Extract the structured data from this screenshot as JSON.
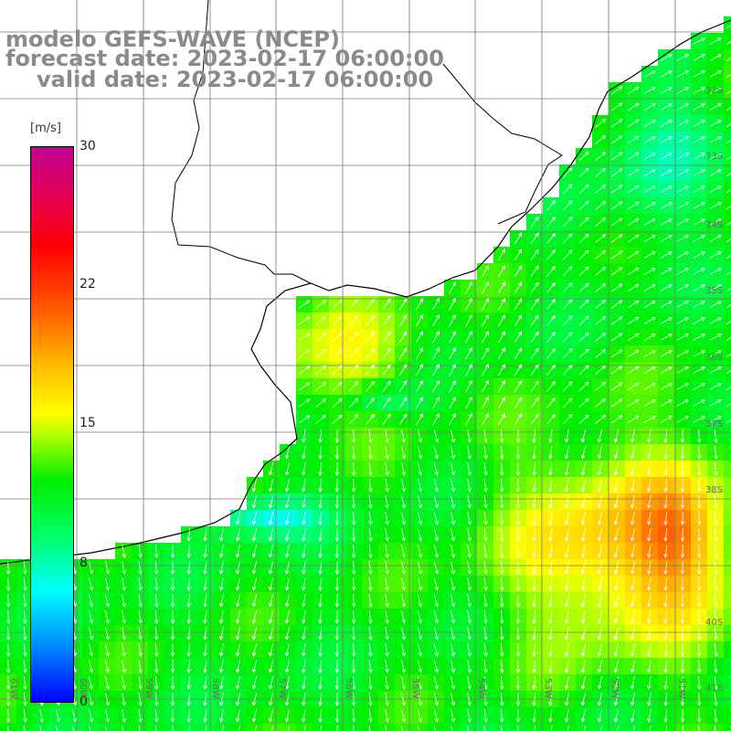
{
  "header": {
    "model_line": "modelo GEFS-WAVE (NCEP)",
    "forecast_line": "forecast date: 2023-02-17 06:00:00",
    "valid_line": "valid date: 2023-02-17 06:00:00"
  },
  "colorbar": {
    "units": "[m/s]",
    "ticks": [
      "30",
      "22",
      "15",
      "8",
      "0"
    ],
    "min": 0,
    "max": 30
  },
  "map": {
    "lat_labels": [
      "32S",
      "33S",
      "34S",
      "35S",
      "36S",
      "37S",
      "38S",
      "40S",
      "41S"
    ],
    "lon_labels": [
      "61W",
      "60W",
      "59W",
      "58W",
      "57W",
      "56W",
      "55W",
      "54W",
      "53W",
      "52W",
      "51W"
    ],
    "extent": {
      "lon_min": -61,
      "lon_max": -50.2,
      "lat_min": -41.4,
      "lat_max": -30.6
    },
    "colors": {
      "grid": "#777777",
      "coast": "#000000",
      "arrows": "#ffffff",
      "land": "#ffffff"
    }
  }
}
